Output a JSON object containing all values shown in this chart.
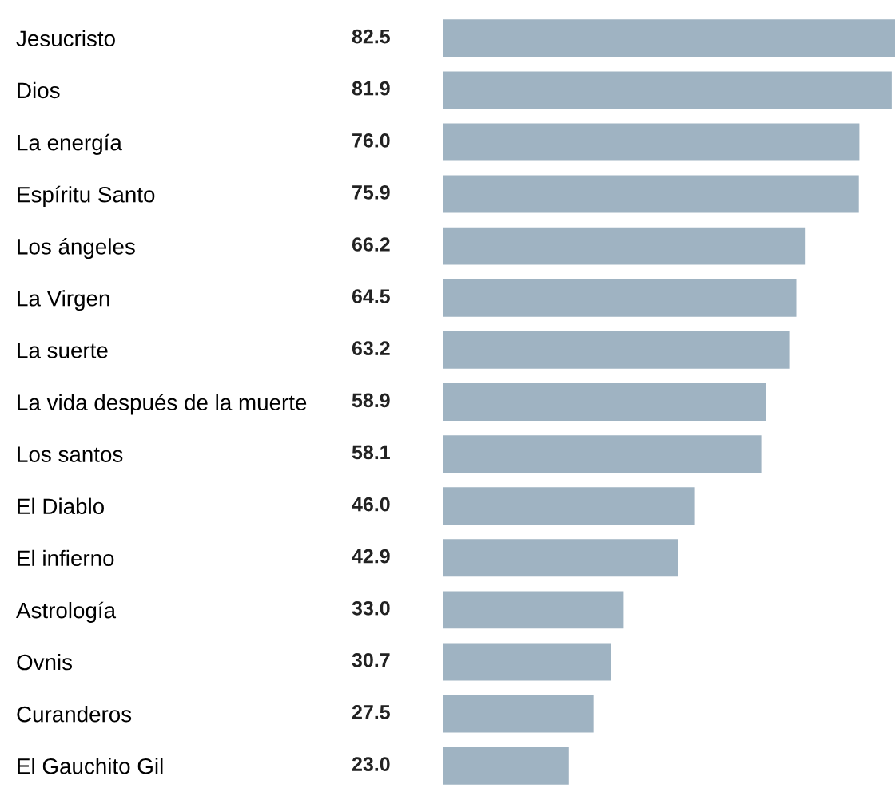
{
  "chart_data": {
    "type": "bar",
    "orientation": "horizontal",
    "categories": [
      "Jesucristo",
      "Dios",
      "La energía",
      "Espíritu Santo",
      "Los ángeles",
      "La Virgen",
      "La suerte",
      "La vida después de la muerte",
      "Los santos",
      "El Diablo",
      "El infierno",
      "Astrología",
      "Ovnis",
      "Curanderos",
      "El Gauchito Gil"
    ],
    "values": [
      82.5,
      81.9,
      76.0,
      75.9,
      66.2,
      64.5,
      63.2,
      58.9,
      58.1,
      46.0,
      42.9,
      33.0,
      30.7,
      27.5,
      23.0
    ],
    "value_labels": [
      "82.5",
      "81.9",
      "76.0",
      "75.9",
      "66.2",
      "64.5",
      "63.2",
      "58.9",
      "58.1",
      "46.0",
      "42.9",
      "33.0",
      "30.7",
      "27.5",
      "23.0"
    ],
    "color": "#9fb3c2",
    "grid": false,
    "legend": false
  }
}
